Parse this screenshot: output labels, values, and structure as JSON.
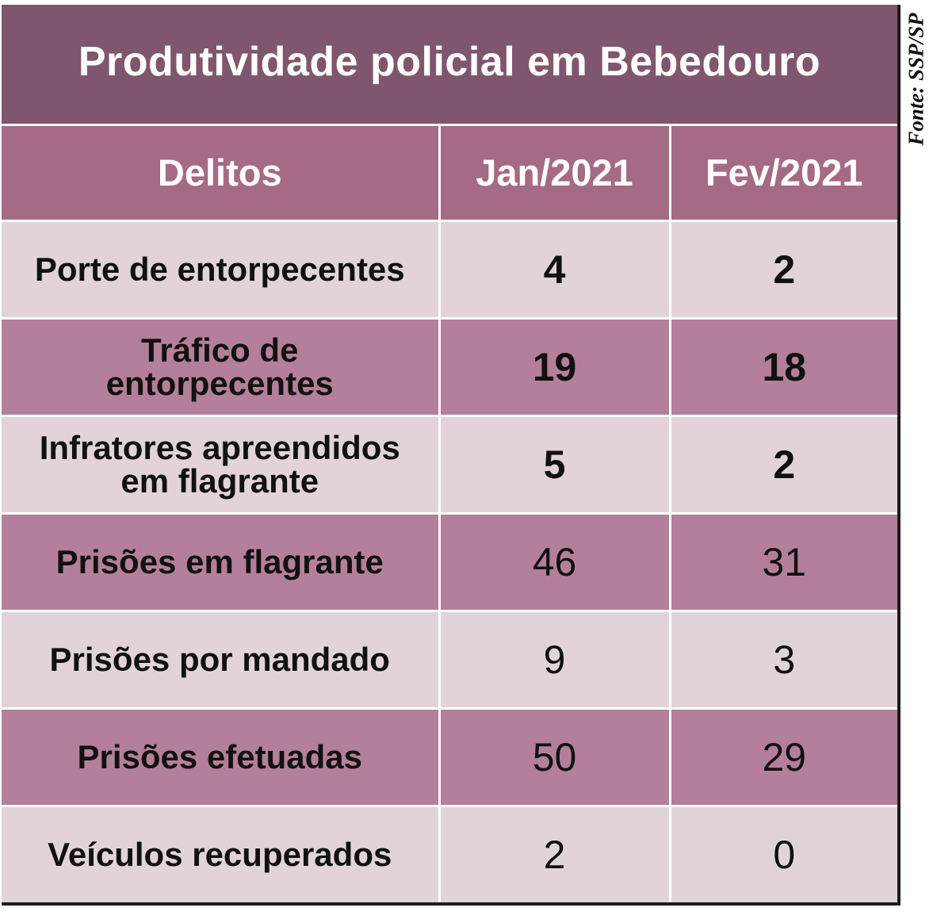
{
  "title": "Produtividade policial em Bebedouro",
  "source": "Fonte: SSP/SP",
  "colors": {
    "title_bg": "#80566f",
    "header_bg": "#a56a86",
    "row_light": "#e2d3da",
    "row_dark": "#b47f9a",
    "grid_line": "#ffffff",
    "text_dark": "#111111",
    "text_light": "#ffffff"
  },
  "chart_data": {
    "type": "table",
    "title": "Produtividade policial em Bebedouro",
    "columns": [
      "Delitos",
      "Jan/2021",
      "Fev/2021"
    ],
    "rows": [
      {
        "label": "Porte de entorpecentes",
        "values": [
          "4",
          "2"
        ],
        "bold_values": true
      },
      {
        "label": "Tráfico de entorpecentes",
        "values": [
          "19",
          "18"
        ],
        "bold_values": true
      },
      {
        "label": "Infratores apreendidos em flagrante",
        "values": [
          "5",
          "2"
        ],
        "bold_values": true
      },
      {
        "label": "Prisões em flagrante",
        "values": [
          "46",
          "31"
        ],
        "bold_values": false
      },
      {
        "label": "Prisões por mandado",
        "values": [
          "9",
          "3"
        ],
        "bold_values": false
      },
      {
        "label": "Prisões efetuadas",
        "values": [
          "50",
          "29"
        ],
        "bold_values": false
      },
      {
        "label": "Veículos recuperados",
        "values": [
          "2",
          "0"
        ],
        "bold_values": false
      }
    ]
  }
}
